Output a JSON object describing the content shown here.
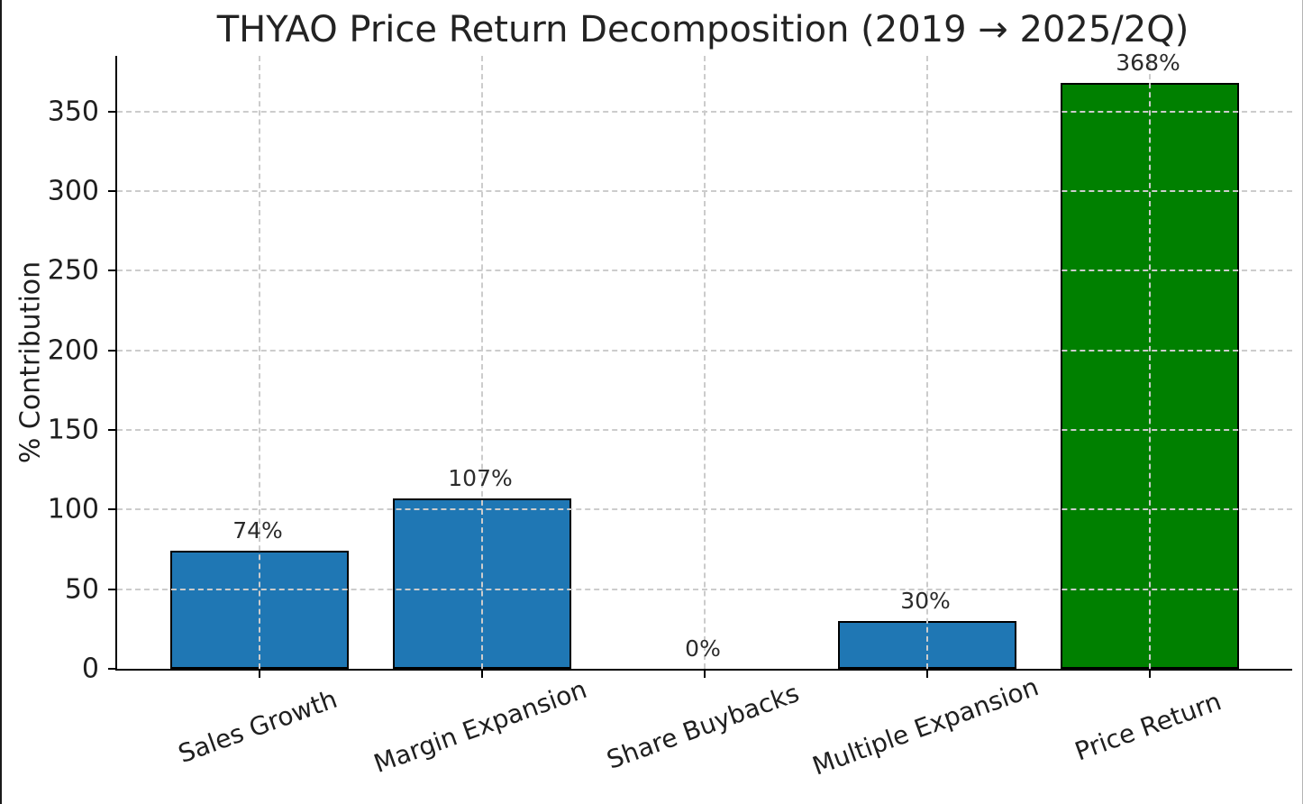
{
  "chart_data": {
    "type": "bar",
    "title": "THYAO Price Return Decomposition (2019 → 2025/2Q)",
    "ylabel": "% Contribution",
    "xlabel": "",
    "categories": [
      "Sales Growth",
      "Margin Expansion",
      "Share Buybacks",
      "Multiple Expansion",
      "Price Return"
    ],
    "values": [
      74,
      107,
      0,
      30,
      368
    ],
    "value_labels": [
      "74%",
      "107%",
      "0%",
      "30%",
      "368%"
    ],
    "bar_colors": [
      "#1f77b4",
      "#1f77b4",
      "#1f77b4",
      "#1f77b4",
      "#008000"
    ],
    "bar_edge_color": "#000000",
    "yticks": [
      0,
      50,
      100,
      150,
      200,
      250,
      300,
      350
    ],
    "ytick_labels": [
      "0",
      "50",
      "100",
      "150",
      "200",
      "250",
      "300",
      "350"
    ],
    "ylim": [
      0,
      385
    ],
    "grid": "dashed horizontal and vertical gridlines, drawn over bars",
    "legend_position": "none"
  },
  "colors": {
    "background": "#ffffff",
    "grid": "#cccccc",
    "axis": "#000000",
    "text": "#1f1f1f",
    "blue_bar": "#1f77b4",
    "green_bar": "#008000",
    "frame_left": "#1a1a1a"
  }
}
